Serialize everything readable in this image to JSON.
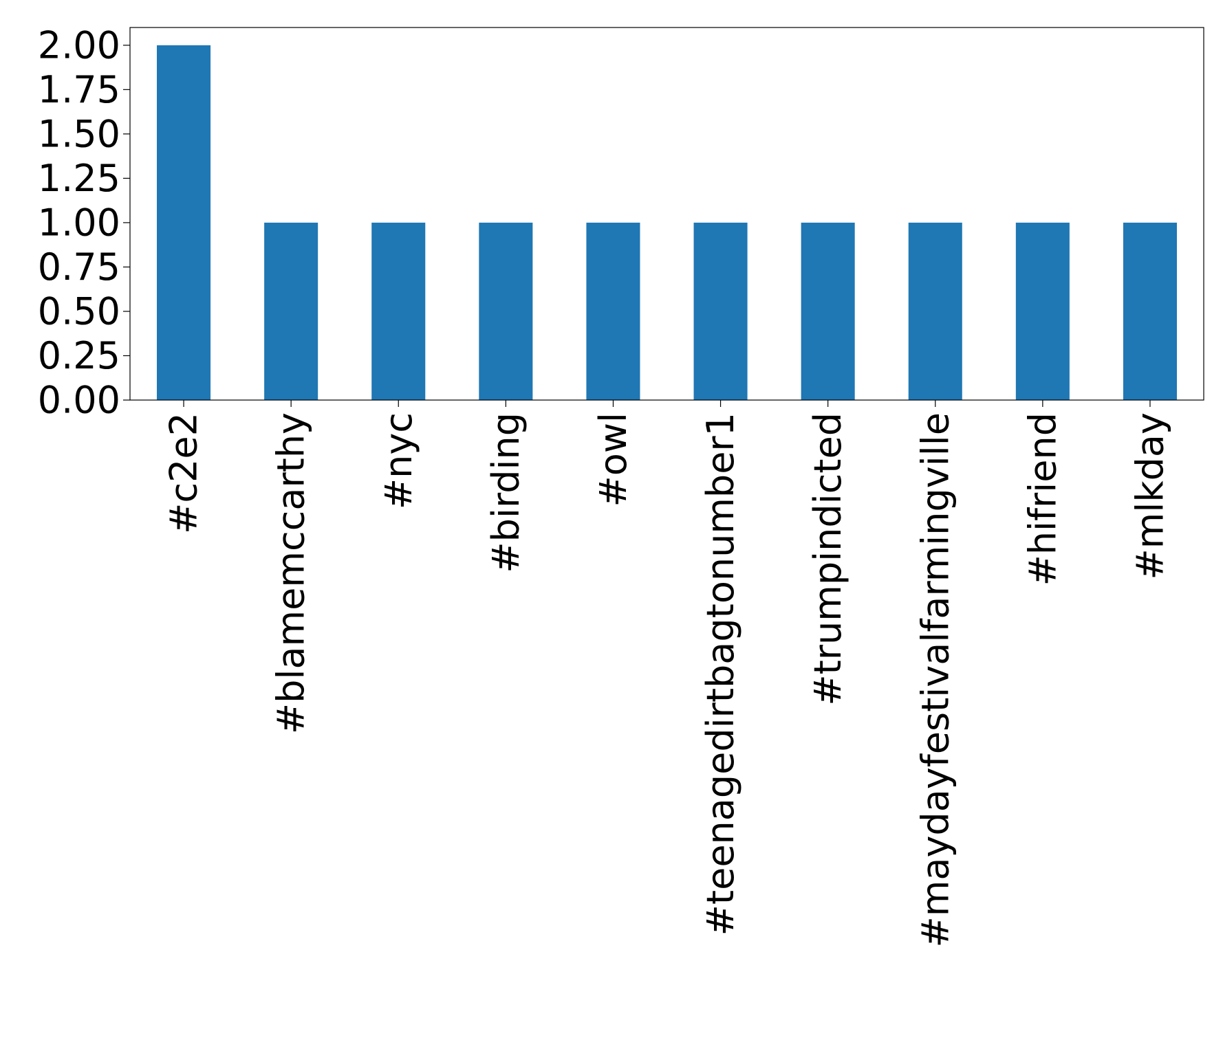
{
  "chart_data": {
    "type": "bar",
    "title": "",
    "xlabel": "",
    "ylabel": "",
    "categories": [
      "#c2e2",
      "#blamemccarthy",
      "#nyc",
      "#birding",
      "#owl",
      "#teenagedirtbagtonumber1",
      "#trumpindicted",
      "#maydayfestivalfarmingville",
      "#hifriend",
      "#mlkday"
    ],
    "values": [
      2,
      1,
      1,
      1,
      1,
      1,
      1,
      1,
      1,
      1
    ],
    "ylim": [
      0,
      2.1
    ],
    "yticks": [
      "0.00",
      "0.25",
      "0.50",
      "0.75",
      "1.00",
      "1.25",
      "1.50",
      "1.75",
      "2.00"
    ],
    "bar_color": "#1f77b4",
    "grid": false,
    "legend": "none"
  }
}
